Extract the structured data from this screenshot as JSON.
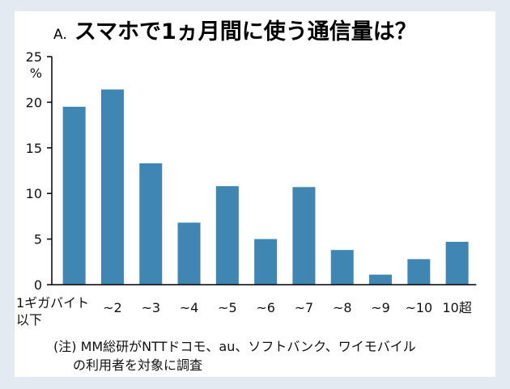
{
  "colors": {
    "bar": "#3f86b2",
    "axis": "#000000",
    "background": "#ffffff",
    "frame": "#e4eaf1"
  },
  "chart_data": {
    "type": "bar",
    "title_prefix": "A.",
    "title": "スマホで1ヵ月間に使う通信量は？",
    "ylabel": "%",
    "xlabel": "",
    "ylim": [
      0,
      25
    ],
    "yticks": [
      0,
      5,
      10,
      15,
      20,
      25
    ],
    "grid": false,
    "categories": [
      "1ギガバイト以下",
      "~2",
      "~3",
      "~4",
      "~5",
      "~6",
      "~7",
      "~8",
      "~9",
      "~10",
      "10超"
    ],
    "category_lines": [
      [
        "1ギガバイト",
        "以下"
      ],
      [
        "~2"
      ],
      [
        "~3"
      ],
      [
        "~4"
      ],
      [
        "~5"
      ],
      [
        "~6"
      ],
      [
        "~7"
      ],
      [
        "~8"
      ],
      [
        "~9"
      ],
      [
        "~10"
      ],
      [
        "10超"
      ]
    ],
    "values": [
      19.5,
      21.4,
      13.3,
      6.8,
      10.8,
      5.0,
      10.7,
      3.8,
      1.1,
      2.8,
      4.7
    ]
  },
  "note_lines": [
    "(注) MM総研がNTTドコモ、au、ソフトバンク、ワイモバイル",
    "の利用者を対象に調査"
  ]
}
